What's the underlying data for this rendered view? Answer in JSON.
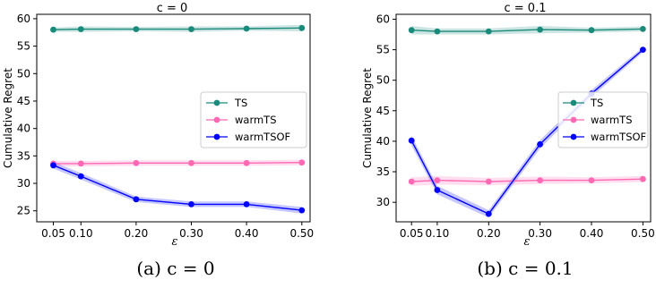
{
  "chart_data": [
    {
      "type": "line",
      "title": "c = 0",
      "xlabel": "ε",
      "ylabel": "Cumulative Regret",
      "x": [
        0.05,
        0.1,
        0.2,
        0.3,
        0.4,
        0.5
      ],
      "x_tick_labels": [
        "0.05",
        "0.10",
        "0.20",
        "0.30",
        "0.40",
        "0.50"
      ],
      "yticks": [
        25,
        30,
        35,
        40,
        45,
        50,
        55,
        60
      ],
      "xlim": [
        0.02,
        0.515
      ],
      "ylim": [
        23,
        60.8
      ],
      "legend_position": "center-right",
      "grid": false,
      "series": [
        {
          "name": "TS",
          "color": "#1a8a7a",
          "values": [
            58.0,
            58.1,
            58.1,
            58.1,
            58.2,
            58.3
          ],
          "band": [
            0.4,
            0.5,
            0.4,
            0.5,
            0.4,
            0.6
          ]
        },
        {
          "name": "warmTS",
          "color": "#ff69b4",
          "values": [
            33.6,
            33.6,
            33.7,
            33.7,
            33.7,
            33.8
          ],
          "band": [
            0.5,
            0.5,
            0.5,
            0.5,
            0.5,
            0.5
          ]
        },
        {
          "name": "warmTSOF",
          "color": "#0000ff",
          "values": [
            33.3,
            31.3,
            27.1,
            26.2,
            26.2,
            25.1
          ],
          "band": [
            0.6,
            0.6,
            0.5,
            0.5,
            0.5,
            0.6
          ]
        }
      ],
      "caption": "(a) c = 0"
    },
    {
      "type": "line",
      "title": "c = 0.1",
      "xlabel": "ε",
      "ylabel": "Cumulative Regret",
      "x": [
        0.05,
        0.1,
        0.2,
        0.3,
        0.4,
        0.5
      ],
      "x_tick_labels": [
        "0.05",
        "0.10",
        "0.20",
        "0.30",
        "0.40",
        "0.50"
      ],
      "yticks": [
        30,
        35,
        40,
        45,
        50,
        55,
        60
      ],
      "xlim": [
        0.02,
        0.515
      ],
      "ylim": [
        26.8,
        60.8
      ],
      "legend_position": "center-right",
      "grid": false,
      "series": [
        {
          "name": "TS",
          "color": "#1a8a7a",
          "values": [
            58.2,
            58.0,
            58.0,
            58.3,
            58.2,
            58.4
          ],
          "band": [
            0.7,
            0.5,
            0.5,
            0.6,
            0.4,
            0.4
          ]
        },
        {
          "name": "warmTS",
          "color": "#ff69b4",
          "values": [
            33.4,
            33.6,
            33.4,
            33.6,
            33.6,
            33.8
          ],
          "band": [
            0.7,
            0.7,
            0.6,
            0.6,
            0.5,
            0.5
          ]
        },
        {
          "name": "warmTSOF",
          "color": "#0000ff",
          "values": [
            40.1,
            32.0,
            28.1,
            39.5,
            47.8,
            55.0
          ],
          "band": [
            0.8,
            0.7,
            0.6,
            0.7,
            0.6,
            0.4
          ]
        }
      ],
      "caption": "(b) c = 0.1"
    }
  ]
}
